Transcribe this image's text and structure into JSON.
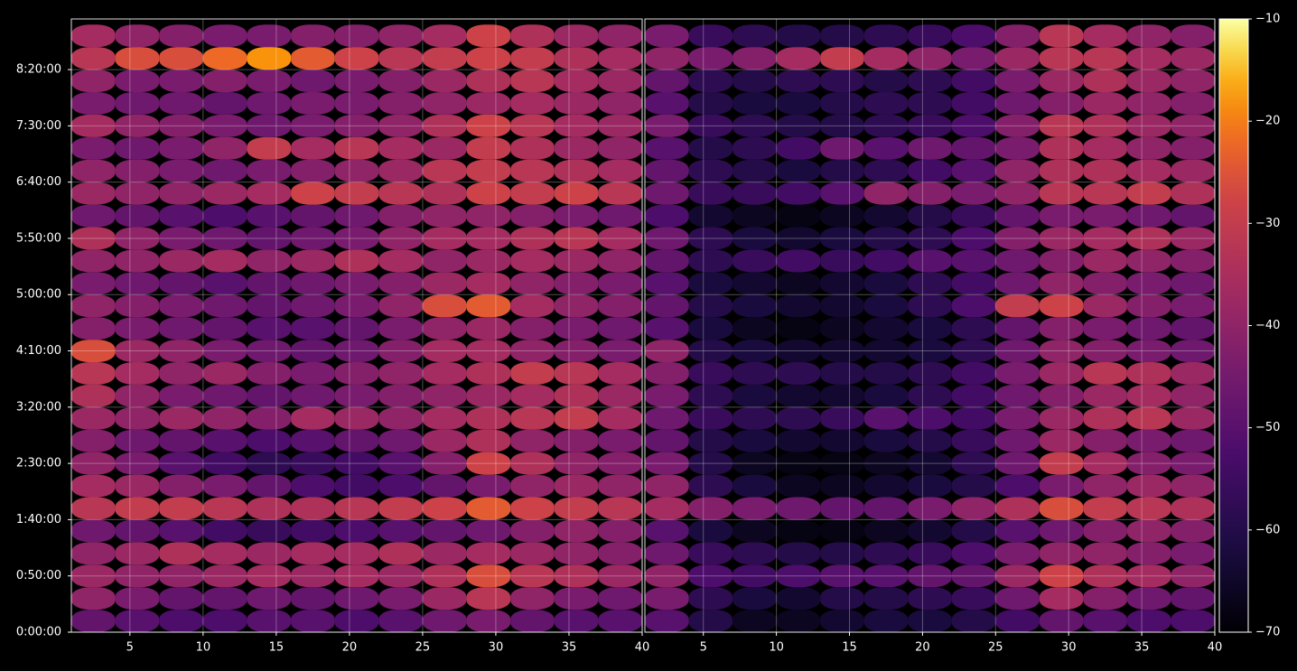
{
  "chart_data": [
    {
      "type": "heatmap",
      "grid": true,
      "x": [
        2.5,
        5.5,
        8.5,
        11.5,
        14.5,
        17.5,
        20.5,
        23.5,
        26.5,
        29.5,
        32.5,
        35.5,
        38.5
      ],
      "y": [
        600,
        1800,
        3000,
        4200,
        5400,
        6600,
        7800,
        9000,
        10200,
        11400,
        12600,
        13800,
        15000,
        16200,
        17400,
        18600,
        19800,
        21000,
        22200,
        23400,
        24600,
        25800,
        27000,
        28200,
        29400,
        30600,
        31800
      ],
      "xlim": [
        1,
        40
      ],
      "xticks": [
        5,
        10,
        15,
        20,
        25,
        30,
        35,
        40
      ],
      "ylim": [
        0,
        32700
      ],
      "yticks": [
        {
          "value": 0,
          "label": "0:00:00"
        },
        {
          "value": 3000,
          "label": "0:50:00"
        },
        {
          "value": 6000,
          "label": "1:40:00"
        },
        {
          "value": 9000,
          "label": "2:30:00"
        },
        {
          "value": 12000,
          "label": "3:20:00"
        },
        {
          "value": 15000,
          "label": "4:10:00"
        },
        {
          "value": 18000,
          "label": "5:00:00"
        },
        {
          "value": 21000,
          "label": "5:50:00"
        },
        {
          "value": 24000,
          "label": "6:40:00"
        },
        {
          "value": 27000,
          "label": "7:30:00"
        },
        {
          "value": 30000,
          "label": "8:20:00"
        }
      ],
      "values": [
        [
          -48,
          -50,
          -52,
          -52,
          -50,
          -50,
          -52,
          -50,
          -46,
          -44,
          -48,
          -50,
          -50
        ],
        [
          -40,
          -44,
          -48,
          -48,
          -46,
          -48,
          -46,
          -44,
          -38,
          -32,
          -40,
          -44,
          -46
        ],
        [
          -38,
          -40,
          -40,
          -38,
          -36,
          -38,
          -36,
          -38,
          -34,
          -26,
          -32,
          -34,
          -38
        ],
        [
          -40,
          -38,
          -34,
          -36,
          -38,
          -36,
          -36,
          -34,
          -38,
          -36,
          -38,
          -40,
          -42
        ],
        [
          -46,
          -48,
          -50,
          -54,
          -56,
          -54,
          -52,
          -50,
          -48,
          -46,
          -42,
          -40,
          -42
        ],
        [
          -32,
          -30,
          -30,
          -32,
          -34,
          -34,
          -32,
          -30,
          -28,
          -24,
          -28,
          -30,
          -32
        ],
        [
          -36,
          -38,
          -42,
          -44,
          -48,
          -52,
          -54,
          -52,
          -48,
          -44,
          -40,
          -38,
          -40
        ],
        [
          -40,
          -44,
          -50,
          -54,
          -58,
          -56,
          -54,
          -50,
          -42,
          -28,
          -34,
          -40,
          -42
        ],
        [
          -42,
          -46,
          -48,
          -50,
          -52,
          -50,
          -48,
          -46,
          -38,
          -34,
          -40,
          -42,
          -44
        ],
        [
          -38,
          -40,
          -38,
          -40,
          -42,
          -36,
          -38,
          -40,
          -36,
          -34,
          -32,
          -30,
          -36
        ],
        [
          -34,
          -40,
          -44,
          -46,
          -48,
          -46,
          -44,
          -42,
          -40,
          -38,
          -36,
          -34,
          -38
        ],
        [
          -32,
          -36,
          -40,
          -38,
          -42,
          -44,
          -42,
          -40,
          -36,
          -34,
          -30,
          -32,
          -36
        ],
        [
          -26,
          -38,
          -40,
          -44,
          -46,
          -48,
          -46,
          -42,
          -36,
          -36,
          -40,
          -42,
          -44
        ],
        [
          -42,
          -44,
          -46,
          -48,
          -50,
          -50,
          -48,
          -44,
          -40,
          -38,
          -42,
          -44,
          -46
        ],
        [
          -40,
          -42,
          -44,
          -46,
          -48,
          -46,
          -44,
          -40,
          -26,
          -24,
          -36,
          -40,
          -42
        ],
        [
          -44,
          -46,
          -48,
          -50,
          -48,
          -46,
          -44,
          -42,
          -38,
          -36,
          -40,
          -42,
          -44
        ],
        [
          -40,
          -40,
          -38,
          -36,
          -40,
          -38,
          -34,
          -36,
          -40,
          -38,
          -36,
          -38,
          -40
        ],
        [
          -34,
          -40,
          -44,
          -46,
          -48,
          -46,
          -44,
          -40,
          -36,
          -36,
          -34,
          -32,
          -36
        ],
        [
          -46,
          -48,
          -50,
          -52,
          -50,
          -48,
          -46,
          -42,
          -40,
          -40,
          -42,
          -44,
          -46
        ],
        [
          -38,
          -40,
          -40,
          -38,
          -36,
          -28,
          -30,
          -32,
          -34,
          -28,
          -30,
          -28,
          -32
        ],
        [
          -40,
          -42,
          -44,
          -46,
          -44,
          -42,
          -40,
          -38,
          -32,
          -30,
          -32,
          -34,
          -36
        ],
        [
          -44,
          -46,
          -44,
          -40,
          -30,
          -36,
          -32,
          -36,
          -38,
          -30,
          -34,
          -38,
          -40
        ],
        [
          -36,
          -40,
          -42,
          -44,
          -46,
          -44,
          -42,
          -40,
          -34,
          -28,
          -32,
          -36,
          -38
        ],
        [
          -44,
          -46,
          -46,
          -48,
          -46,
          -44,
          -44,
          -42,
          -40,
          -38,
          -36,
          -38,
          -40
        ],
        [
          -40,
          -44,
          -44,
          -42,
          -44,
          -46,
          -44,
          -42,
          -38,
          -34,
          -32,
          -36,
          -38
        ],
        [
          -32,
          -26,
          -26,
          -22,
          -18,
          -24,
          -28,
          -32,
          -30,
          -28,
          -30,
          -34,
          -36
        ],
        [
          -36,
          -40,
          -42,
          -44,
          -44,
          -42,
          -42,
          -40,
          -36,
          -28,
          -34,
          -38,
          -40
        ]
      ]
    },
    {
      "type": "heatmap",
      "grid": true,
      "x": [
        2.5,
        5.5,
        8.5,
        11.5,
        14.5,
        17.5,
        20.5,
        23.5,
        26.5,
        29.5,
        32.5,
        35.5,
        38.5
      ],
      "y": [
        600,
        1800,
        3000,
        4200,
        5400,
        6600,
        7800,
        9000,
        10200,
        11400,
        12600,
        13800,
        15000,
        16200,
        17400,
        18600,
        19800,
        21000,
        22200,
        23400,
        24600,
        25800,
        27000,
        28200,
        29400,
        30600,
        31800
      ],
      "xlim": [
        1,
        40
      ],
      "xticks": [
        5,
        10,
        15,
        20,
        25,
        30,
        35,
        40
      ],
      "ylim": [
        0,
        32700
      ],
      "values": [
        [
          -50,
          -60,
          -66,
          -66,
          -64,
          -62,
          -62,
          -60,
          -54,
          -48,
          -50,
          -52,
          -52
        ],
        [
          -44,
          -58,
          -62,
          -64,
          -60,
          -60,
          -58,
          -56,
          -46,
          -36,
          -42,
          -46,
          -48
        ],
        [
          -40,
          -52,
          -54,
          -52,
          -50,
          -50,
          -48,
          -48,
          -38,
          -28,
          -34,
          -36,
          -40
        ],
        [
          -46,
          -56,
          -58,
          -60,
          -60,
          -58,
          -56,
          -52,
          -44,
          -40,
          -40,
          -42,
          -44
        ],
        [
          -50,
          -62,
          -66,
          -68,
          -68,
          -66,
          -64,
          -60,
          -50,
          -46,
          -42,
          -40,
          -42
        ],
        [
          -36,
          -42,
          -44,
          -46,
          -48,
          -48,
          -44,
          -40,
          -34,
          -26,
          -30,
          -32,
          -34
        ],
        [
          -40,
          -58,
          -62,
          -66,
          -66,
          -64,
          -62,
          -60,
          -52,
          -44,
          -40,
          -38,
          -40
        ],
        [
          -44,
          -60,
          -66,
          -68,
          -68,
          -66,
          -64,
          -58,
          -46,
          -30,
          -36,
          -42,
          -44
        ],
        [
          -48,
          -60,
          -62,
          -64,
          -64,
          -62,
          -60,
          -56,
          -46,
          -38,
          -42,
          -44,
          -46
        ],
        [
          -46,
          -56,
          -58,
          -58,
          -56,
          -50,
          -52,
          -54,
          -44,
          -38,
          -34,
          -32,
          -38
        ],
        [
          -44,
          -58,
          -62,
          -64,
          -64,
          -62,
          -58,
          -54,
          -46,
          -42,
          -38,
          -36,
          -40
        ],
        [
          -42,
          -56,
          -58,
          -58,
          -60,
          -60,
          -58,
          -54,
          -44,
          -38,
          -32,
          -34,
          -38
        ],
        [
          -40,
          -60,
          -62,
          -64,
          -64,
          -64,
          -62,
          -58,
          -46,
          -40,
          -42,
          -44,
          -46
        ],
        [
          -50,
          -62,
          -66,
          -68,
          -66,
          -64,
          -62,
          -58,
          -48,
          -42,
          -44,
          -46,
          -48
        ],
        [
          -48,
          -60,
          -62,
          -64,
          -64,
          -62,
          -58,
          -52,
          -30,
          -28,
          -38,
          -42,
          -44
        ],
        [
          -50,
          -62,
          -64,
          -66,
          -64,
          -62,
          -58,
          -54,
          -46,
          -40,
          -42,
          -44,
          -46
        ],
        [
          -48,
          -58,
          -56,
          -54,
          -56,
          -54,
          -50,
          -50,
          -46,
          -42,
          -38,
          -40,
          -42
        ],
        [
          -46,
          -58,
          -62,
          -64,
          -62,
          -60,
          -58,
          -52,
          -42,
          -38,
          -36,
          -34,
          -38
        ],
        [
          -52,
          -64,
          -66,
          -68,
          -66,
          -64,
          -60,
          -56,
          -48,
          -44,
          -44,
          -46,
          -48
        ],
        [
          -46,
          -56,
          -56,
          -54,
          -50,
          -40,
          -42,
          -44,
          -40,
          -32,
          -32,
          -30,
          -34
        ],
        [
          -48,
          -58,
          -60,
          -62,
          -60,
          -58,
          -54,
          -50,
          -40,
          -34,
          -34,
          -36,
          -38
        ],
        [
          -50,
          -60,
          -58,
          -54,
          -46,
          -50,
          -46,
          -48,
          -44,
          -34,
          -36,
          -40,
          -42
        ],
        [
          -44,
          -56,
          -58,
          -60,
          -60,
          -58,
          -56,
          -52,
          -42,
          -32,
          -34,
          -38,
          -40
        ],
        [
          -50,
          -60,
          -62,
          -62,
          -60,
          -58,
          -58,
          -54,
          -46,
          -42,
          -38,
          -40,
          -42
        ],
        [
          -48,
          -58,
          -60,
          -58,
          -58,
          -60,
          -58,
          -54,
          -44,
          -38,
          -34,
          -38,
          -40
        ],
        [
          -40,
          -44,
          -42,
          -36,
          -30,
          -36,
          -40,
          -44,
          -38,
          -32,
          -32,
          -36,
          -38
        ],
        [
          -44,
          -56,
          -58,
          -60,
          -60,
          -58,
          -56,
          -52,
          -42,
          -32,
          -36,
          -40,
          -42
        ]
      ],
      "colorbar": {
        "lim": [
          -70,
          -10
        ],
        "ticks": [
          {
            "value": -70,
            "label": "−70"
          },
          {
            "value": -60,
            "label": "−60"
          },
          {
            "value": -50,
            "label": "−50"
          },
          {
            "value": -40,
            "label": "−40"
          },
          {
            "value": -30,
            "label": "−30"
          },
          {
            "value": -20,
            "label": "−20"
          },
          {
            "value": -10,
            "label": "−10"
          }
        ]
      }
    }
  ]
}
